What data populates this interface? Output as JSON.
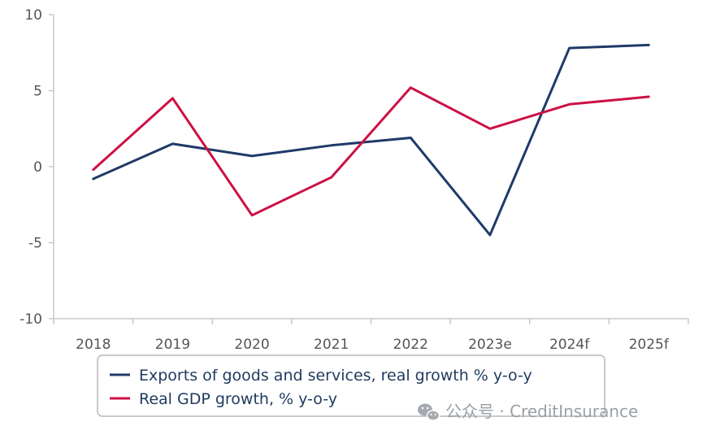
{
  "chart_data": {
    "type": "line",
    "categories": [
      "2018",
      "2019",
      "2020",
      "2021",
      "2022",
      "2023e",
      "2024f",
      "2025f"
    ],
    "series": [
      {
        "name": "Exports of goods and services, real growth % y-o-y",
        "color": "#1f3a68",
        "values": [
          -0.8,
          1.5,
          0.7,
          1.4,
          1.9,
          -4.5,
          7.8,
          8.0
        ]
      },
      {
        "name": "Real GDP growth, % y-o-y",
        "color": "#cc1144",
        "values": [
          -0.2,
          4.5,
          -3.2,
          -0.7,
          5.2,
          2.5,
          4.1,
          4.6
        ]
      }
    ],
    "ylim": [
      -10,
      10
    ],
    "yticks": [
      -10,
      -5,
      0,
      5,
      10
    ],
    "grid": false,
    "legend_position": "bottom-left"
  },
  "watermark": {
    "text": "公众号 · CreditInsurance",
    "icon": "wechat-icon"
  }
}
